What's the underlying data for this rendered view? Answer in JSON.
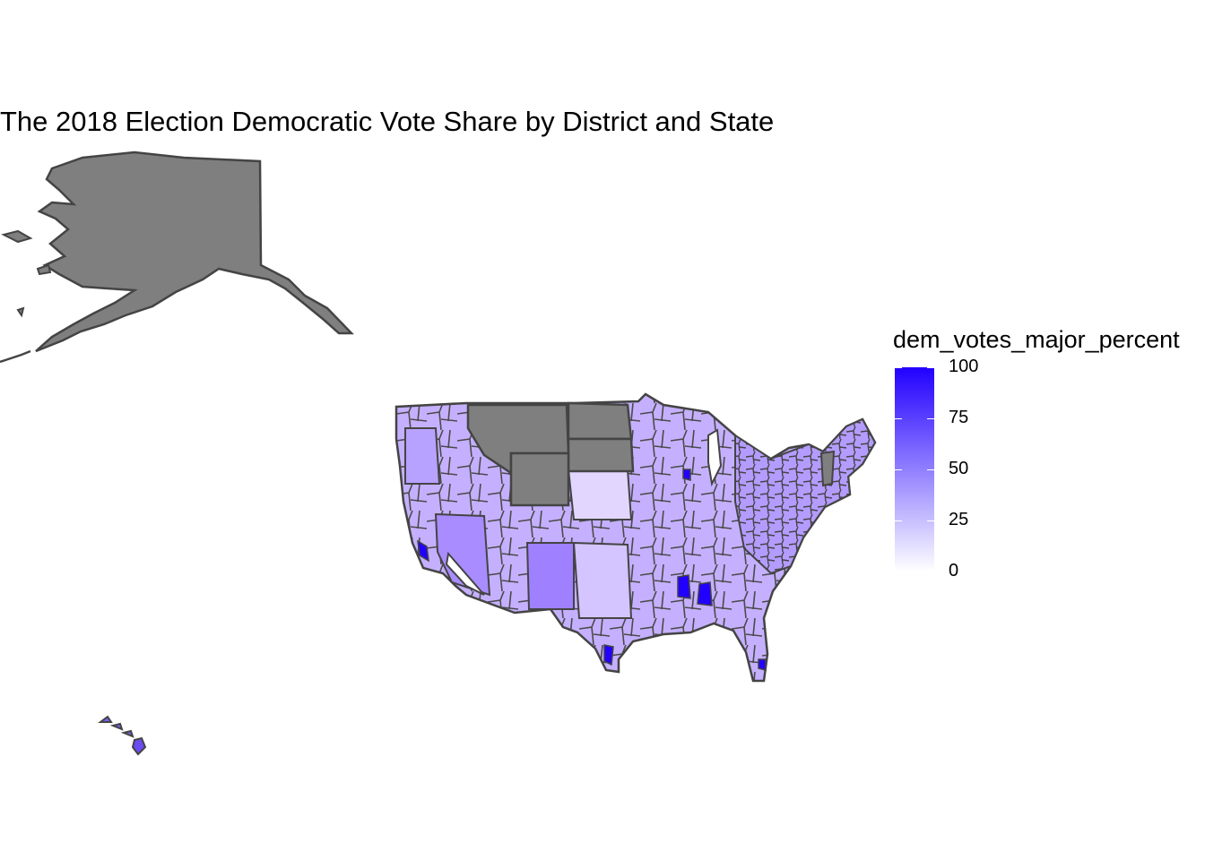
{
  "title": "The 2018 Election Democratic Vote Share by District and State",
  "legend": {
    "title": "dem_votes_major_percent",
    "ticks": [
      "100",
      "75",
      "50",
      "25",
      "0"
    ],
    "tick_values": [
      100,
      75,
      50,
      25,
      0
    ],
    "low_color": "#FFFFFF",
    "high_color": "#2200FF",
    "na_color": "#7F7F7F"
  },
  "colors": {
    "border": "#444444",
    "background": "#FFFFFF"
  }
}
